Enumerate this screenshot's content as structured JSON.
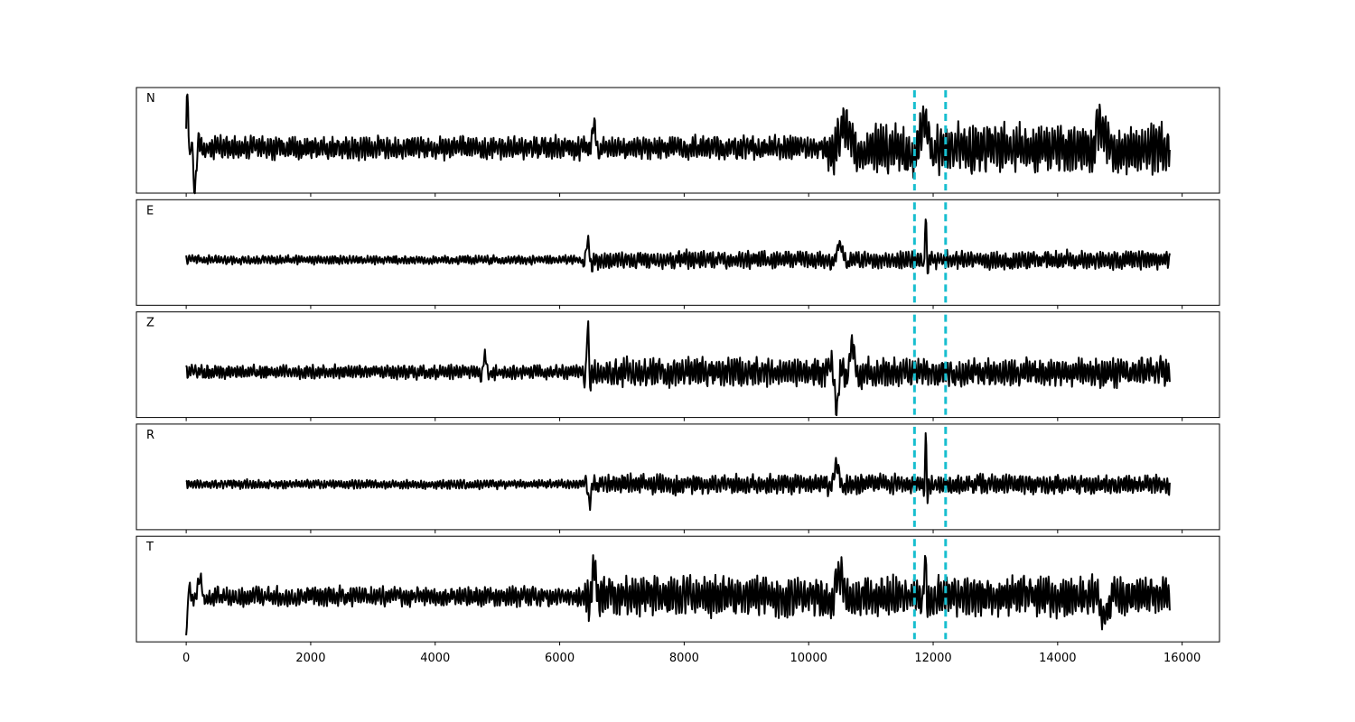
{
  "chart_data": {
    "type": "line",
    "title": "",
    "xlabel": "",
    "ylabel": "",
    "xlim": [
      -800,
      15800
    ],
    "x_ticks": [
      0,
      2000,
      4000,
      6000,
      8000,
      10000,
      12000,
      14000,
      16000
    ],
    "x_tick_labels": [
      "0",
      "2000",
      "4000",
      "6000",
      "8000",
      "10000",
      "12000",
      "14000",
      "16000"
    ],
    "x_range": [
      0,
      15800
    ],
    "markers": [
      11700,
      12200
    ],
    "marker_color": "#17becf",
    "trace_color": "#000000",
    "grid": false,
    "panels": [
      {
        "label": "N",
        "base_amplitude": 0.26,
        "events": [
          {
            "x": 20,
            "amp": 1.45,
            "width": 35
          },
          {
            "x": 140,
            "amp": -0.8,
            "width": 60
          },
          {
            "x": 6550,
            "amp": 0.55,
            "width": 70
          },
          {
            "x": 10600,
            "amp": 0.55,
            "width": 200
          },
          {
            "x": 11850,
            "amp": 0.6,
            "width": 150
          },
          {
            "x": 14700,
            "amp": 0.5,
            "width": 200
          }
        ],
        "post_event_amplitude": 0.55,
        "post_event_start": 10300
      },
      {
        "label": "E",
        "base_amplitude": 0.1,
        "events": [
          {
            "x": 6450,
            "amp": 0.45,
            "width": 60
          },
          {
            "x": 10500,
            "amp": 0.35,
            "width": 120
          },
          {
            "x": 11880,
            "amp": 1.05,
            "width": 30
          }
        ],
        "post_event_amplitude": 0.2,
        "post_event_start": 6400
      },
      {
        "label": "Z",
        "base_amplitude": 0.16,
        "events": [
          {
            "x": 4800,
            "amp": 0.4,
            "width": 60
          },
          {
            "x": 6450,
            "amp": 1.1,
            "width": 40
          },
          {
            "x": 10450,
            "amp": -0.8,
            "width": 80
          },
          {
            "x": 10700,
            "amp": 0.55,
            "width": 100
          }
        ],
        "post_event_amplitude": 0.32,
        "post_event_start": 6400
      },
      {
        "label": "R",
        "base_amplitude": 0.1,
        "events": [
          {
            "x": 6480,
            "amp": -0.45,
            "width": 60
          },
          {
            "x": 10450,
            "amp": 0.4,
            "width": 100
          },
          {
            "x": 11880,
            "amp": 1.05,
            "width": 30
          }
        ],
        "post_event_amplitude": 0.22,
        "post_event_start": 6400
      },
      {
        "label": "T",
        "base_amplitude": 0.22,
        "events": [
          {
            "x": 0,
            "amp": -1.05,
            "width": 40
          },
          {
            "x": 220,
            "amp": 0.45,
            "width": 80
          },
          {
            "x": 6550,
            "amp": 0.75,
            "width": 70
          },
          {
            "x": 10500,
            "amp": 0.55,
            "width": 150
          },
          {
            "x": 11870,
            "amp": 1.1,
            "width": 35
          },
          {
            "x": 14750,
            "amp": -0.45,
            "width": 150
          }
        ],
        "post_event_amplitude": 0.45,
        "post_event_start": 6400
      }
    ]
  }
}
